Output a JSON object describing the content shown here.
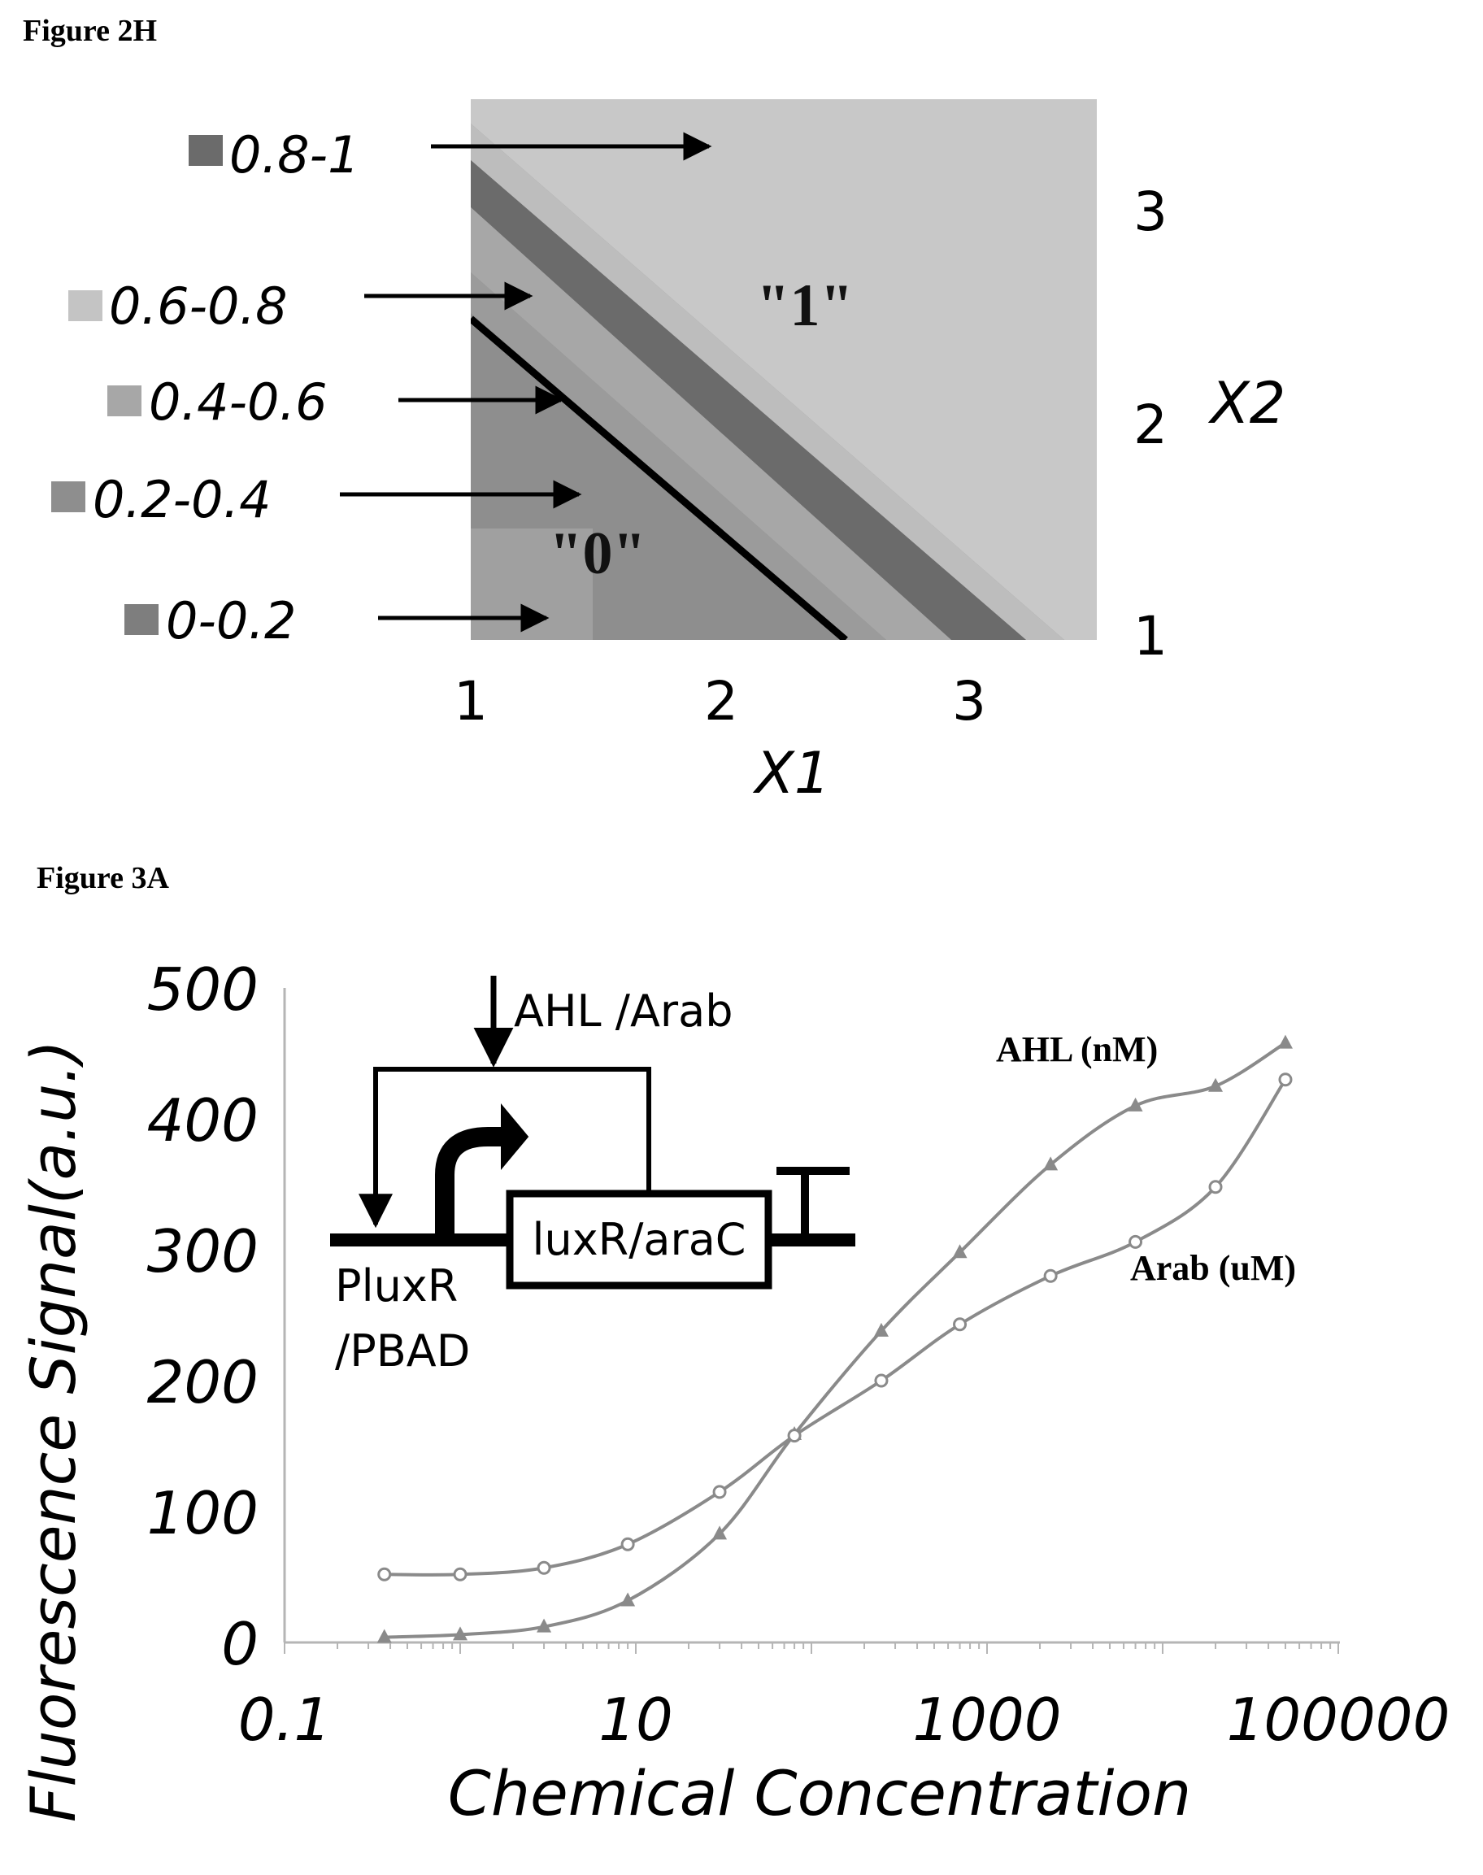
{
  "figure_2h": {
    "label": "Figure 2H",
    "region_labels": {
      "one": "\"1\"",
      "zero": "\"0\""
    },
    "legend": [
      {
        "label": "0.8-1",
        "color": "#6b6b6b"
      },
      {
        "label": "0.6-0.8",
        "color": "#c4c4c4"
      },
      {
        "label": "0.4-0.6",
        "color": "#a7a7a7"
      },
      {
        "label": "0.2-0.4",
        "color": "#8e8e8e"
      },
      {
        "label": "0-0.2",
        "color": "#7e7e7e"
      }
    ]
  },
  "figure_3a": {
    "label": "Figure 3A",
    "inset": {
      "inducer": "AHL /Arab",
      "gene": "luxR/araC",
      "promoter_line1": "PluxR",
      "promoter_line2": "/PBAD"
    }
  },
  "chart_data": [
    {
      "type": "heatmap",
      "title": "",
      "xlabel": "X1",
      "ylabel": "X2",
      "x_ticks": [
        "1",
        "2",
        "3"
      ],
      "y_ticks": [
        "1",
        "2",
        "3"
      ],
      "xlim": [
        1,
        3.5
      ],
      "ylim": [
        1,
        3.5
      ],
      "bands": [
        {
          "range": "0-0.2",
          "color": "#7e7e7e"
        },
        {
          "range": "0.2-0.4",
          "color": "#8e8e8e"
        },
        {
          "range": "0.4-0.6",
          "color": "#a7a7a7"
        },
        {
          "range": "0.6-0.8",
          "color": "#c4c4c4"
        },
        {
          "range": "0.8-1",
          "color": "#6b6b6b"
        }
      ]
    },
    {
      "type": "line",
      "title": "",
      "xlabel": "Chemical Concentration",
      "ylabel": "Fluorescence Signal(a.u.)",
      "x_scale": "log",
      "xlim": [
        0.1,
        100000
      ],
      "ylim": [
        0,
        500
      ],
      "x_ticks": [
        "0.1",
        "10",
        "1000",
        "100000"
      ],
      "y_ticks": [
        "0",
        "100",
        "200",
        "300",
        "400",
        "500"
      ],
      "series": [
        {
          "name": "AHL (nM)",
          "marker": "triangle",
          "color": "#8a8a8a",
          "x": [
            0.37,
            1,
            3,
            9,
            30,
            80,
            250,
            700,
            2300,
            7000,
            20000,
            50000
          ],
          "y": [
            4,
            6,
            12,
            32,
            83,
            159,
            238,
            298,
            365,
            410,
            425,
            458
          ]
        },
        {
          "name": "Arab (uM)",
          "marker": "circle",
          "color": "#8a8a8a",
          "x": [
            0.37,
            1,
            3,
            9,
            30,
            80,
            250,
            700,
            2300,
            7000,
            20000,
            50000
          ],
          "y": [
            52,
            52,
            57,
            75,
            115,
            158,
            200,
            243,
            280,
            306,
            348,
            430
          ]
        }
      ]
    }
  ]
}
